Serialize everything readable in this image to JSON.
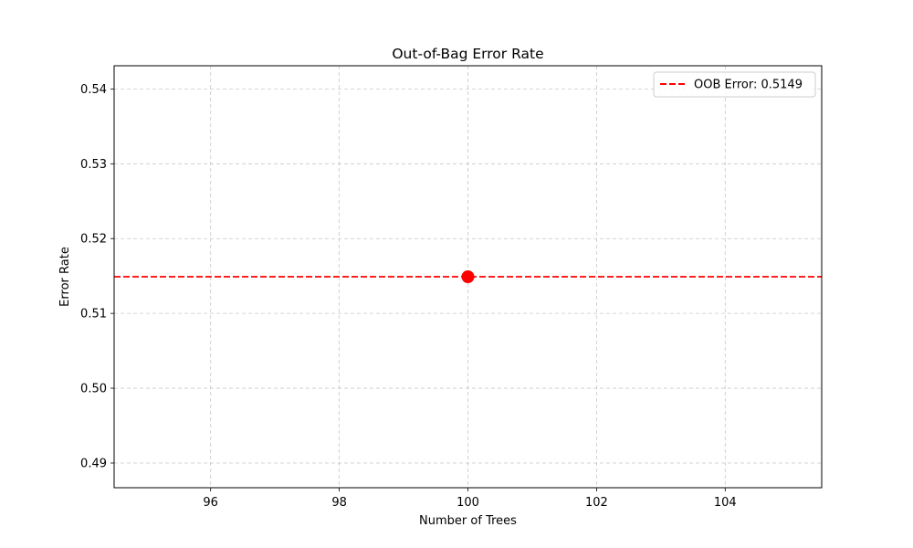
{
  "chart_data": {
    "type": "line",
    "title": "Out-of-Bag Error Rate",
    "xlabel": "Number of Trees",
    "ylabel": "Error Rate",
    "xlim": [
      94.5,
      105.5
    ],
    "ylim": [
      0.4867,
      0.5431
    ],
    "xticks": [
      96,
      98,
      100,
      102,
      104
    ],
    "yticks": [
      0.49,
      0.5,
      0.51,
      0.52,
      0.53,
      0.54
    ],
    "grid": true,
    "legend_position": "upper-right",
    "series": [
      {
        "name": "OOB Error: 0.5149",
        "kind": "hline",
        "y": 0.5149,
        "color": "#ff0000",
        "style": "dashed"
      },
      {
        "kind": "scatter",
        "points": [
          {
            "x": 100,
            "y": 0.5149
          }
        ],
        "color": "#ff0000"
      }
    ]
  }
}
